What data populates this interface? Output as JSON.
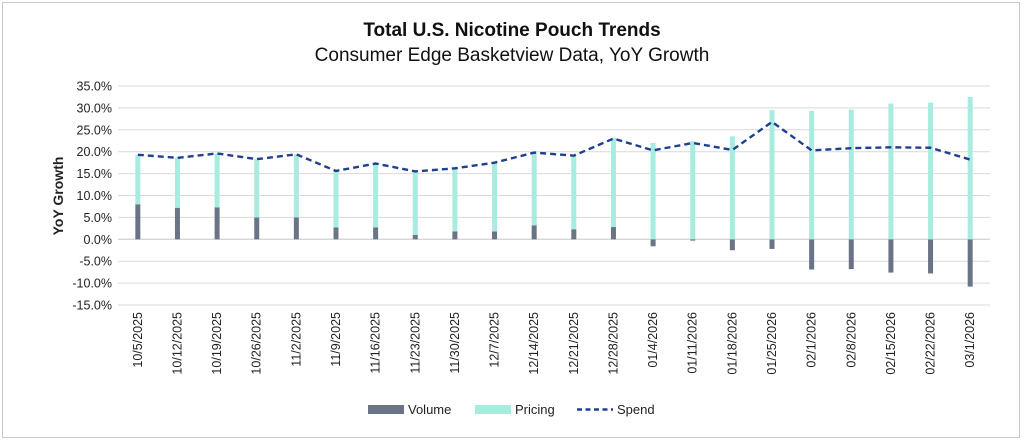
{
  "chart_data": {
    "type": "bar",
    "title": "Total U.S. Nicotine Pouch Trends",
    "subtitle": "Consumer Edge Basketview Data, YoY Growth",
    "ylabel": "YoY Growth",
    "xlabel": "",
    "ylim": [
      -15,
      35
    ],
    "yticks": [
      "-15.0%",
      "-10.0%",
      "-5.0%",
      "0.0%",
      "5.0%",
      "10.0%",
      "15.0%",
      "20.0%",
      "25.0%",
      "30.0%",
      "35.0%"
    ],
    "grid": true,
    "legend_position": "bottom",
    "categories": [
      "10/5/2025",
      "10/12/2025",
      "10/19/2025",
      "10/26/2025",
      "11/2/2025",
      "11/9/2025",
      "11/16/2025",
      "11/23/2025",
      "11/30/2025",
      "12/7/2025",
      "12/14/2025",
      "12/21/2025",
      "12/28/2025",
      "01/4/2026",
      "01/11/2026",
      "01/18/2026",
      "01/25/2026",
      "02/1/2026",
      "02/8/2026",
      "02/15/2026",
      "02/22/2026",
      "03/1/2026"
    ],
    "series": [
      {
        "name": "Volume",
        "kind": "bar",
        "color": "#6b7386",
        "values": [
          8.0,
          7.2,
          7.3,
          5.0,
          5.0,
          2.7,
          2.7,
          1.0,
          1.8,
          1.8,
          3.2,
          2.3,
          2.8,
          -1.6,
          -0.3,
          -2.5,
          -2.2,
          -6.9,
          -6.8,
          -7.6,
          -7.8,
          -10.8
        ]
      },
      {
        "name": "Pricing",
        "kind": "bar",
        "color": "#a8ece0",
        "values": [
          11.2,
          11.5,
          12.3,
          13.3,
          14.4,
          13.0,
          14.5,
          14.5,
          14.5,
          15.7,
          16.6,
          16.7,
          20.4,
          22.0,
          22.4,
          23.5,
          29.5,
          29.3,
          29.6,
          31.0,
          31.2,
          32.5
        ]
      },
      {
        "name": "Spend",
        "kind": "line",
        "color": "#1f3f8f",
        "values": [
          19.3,
          18.6,
          19.6,
          18.3,
          19.4,
          15.6,
          17.3,
          15.5,
          16.2,
          17.5,
          19.8,
          19.1,
          23.0,
          20.3,
          22.0,
          20.4,
          26.8,
          20.3,
          20.8,
          21.0,
          20.9,
          18.2
        ]
      }
    ]
  }
}
